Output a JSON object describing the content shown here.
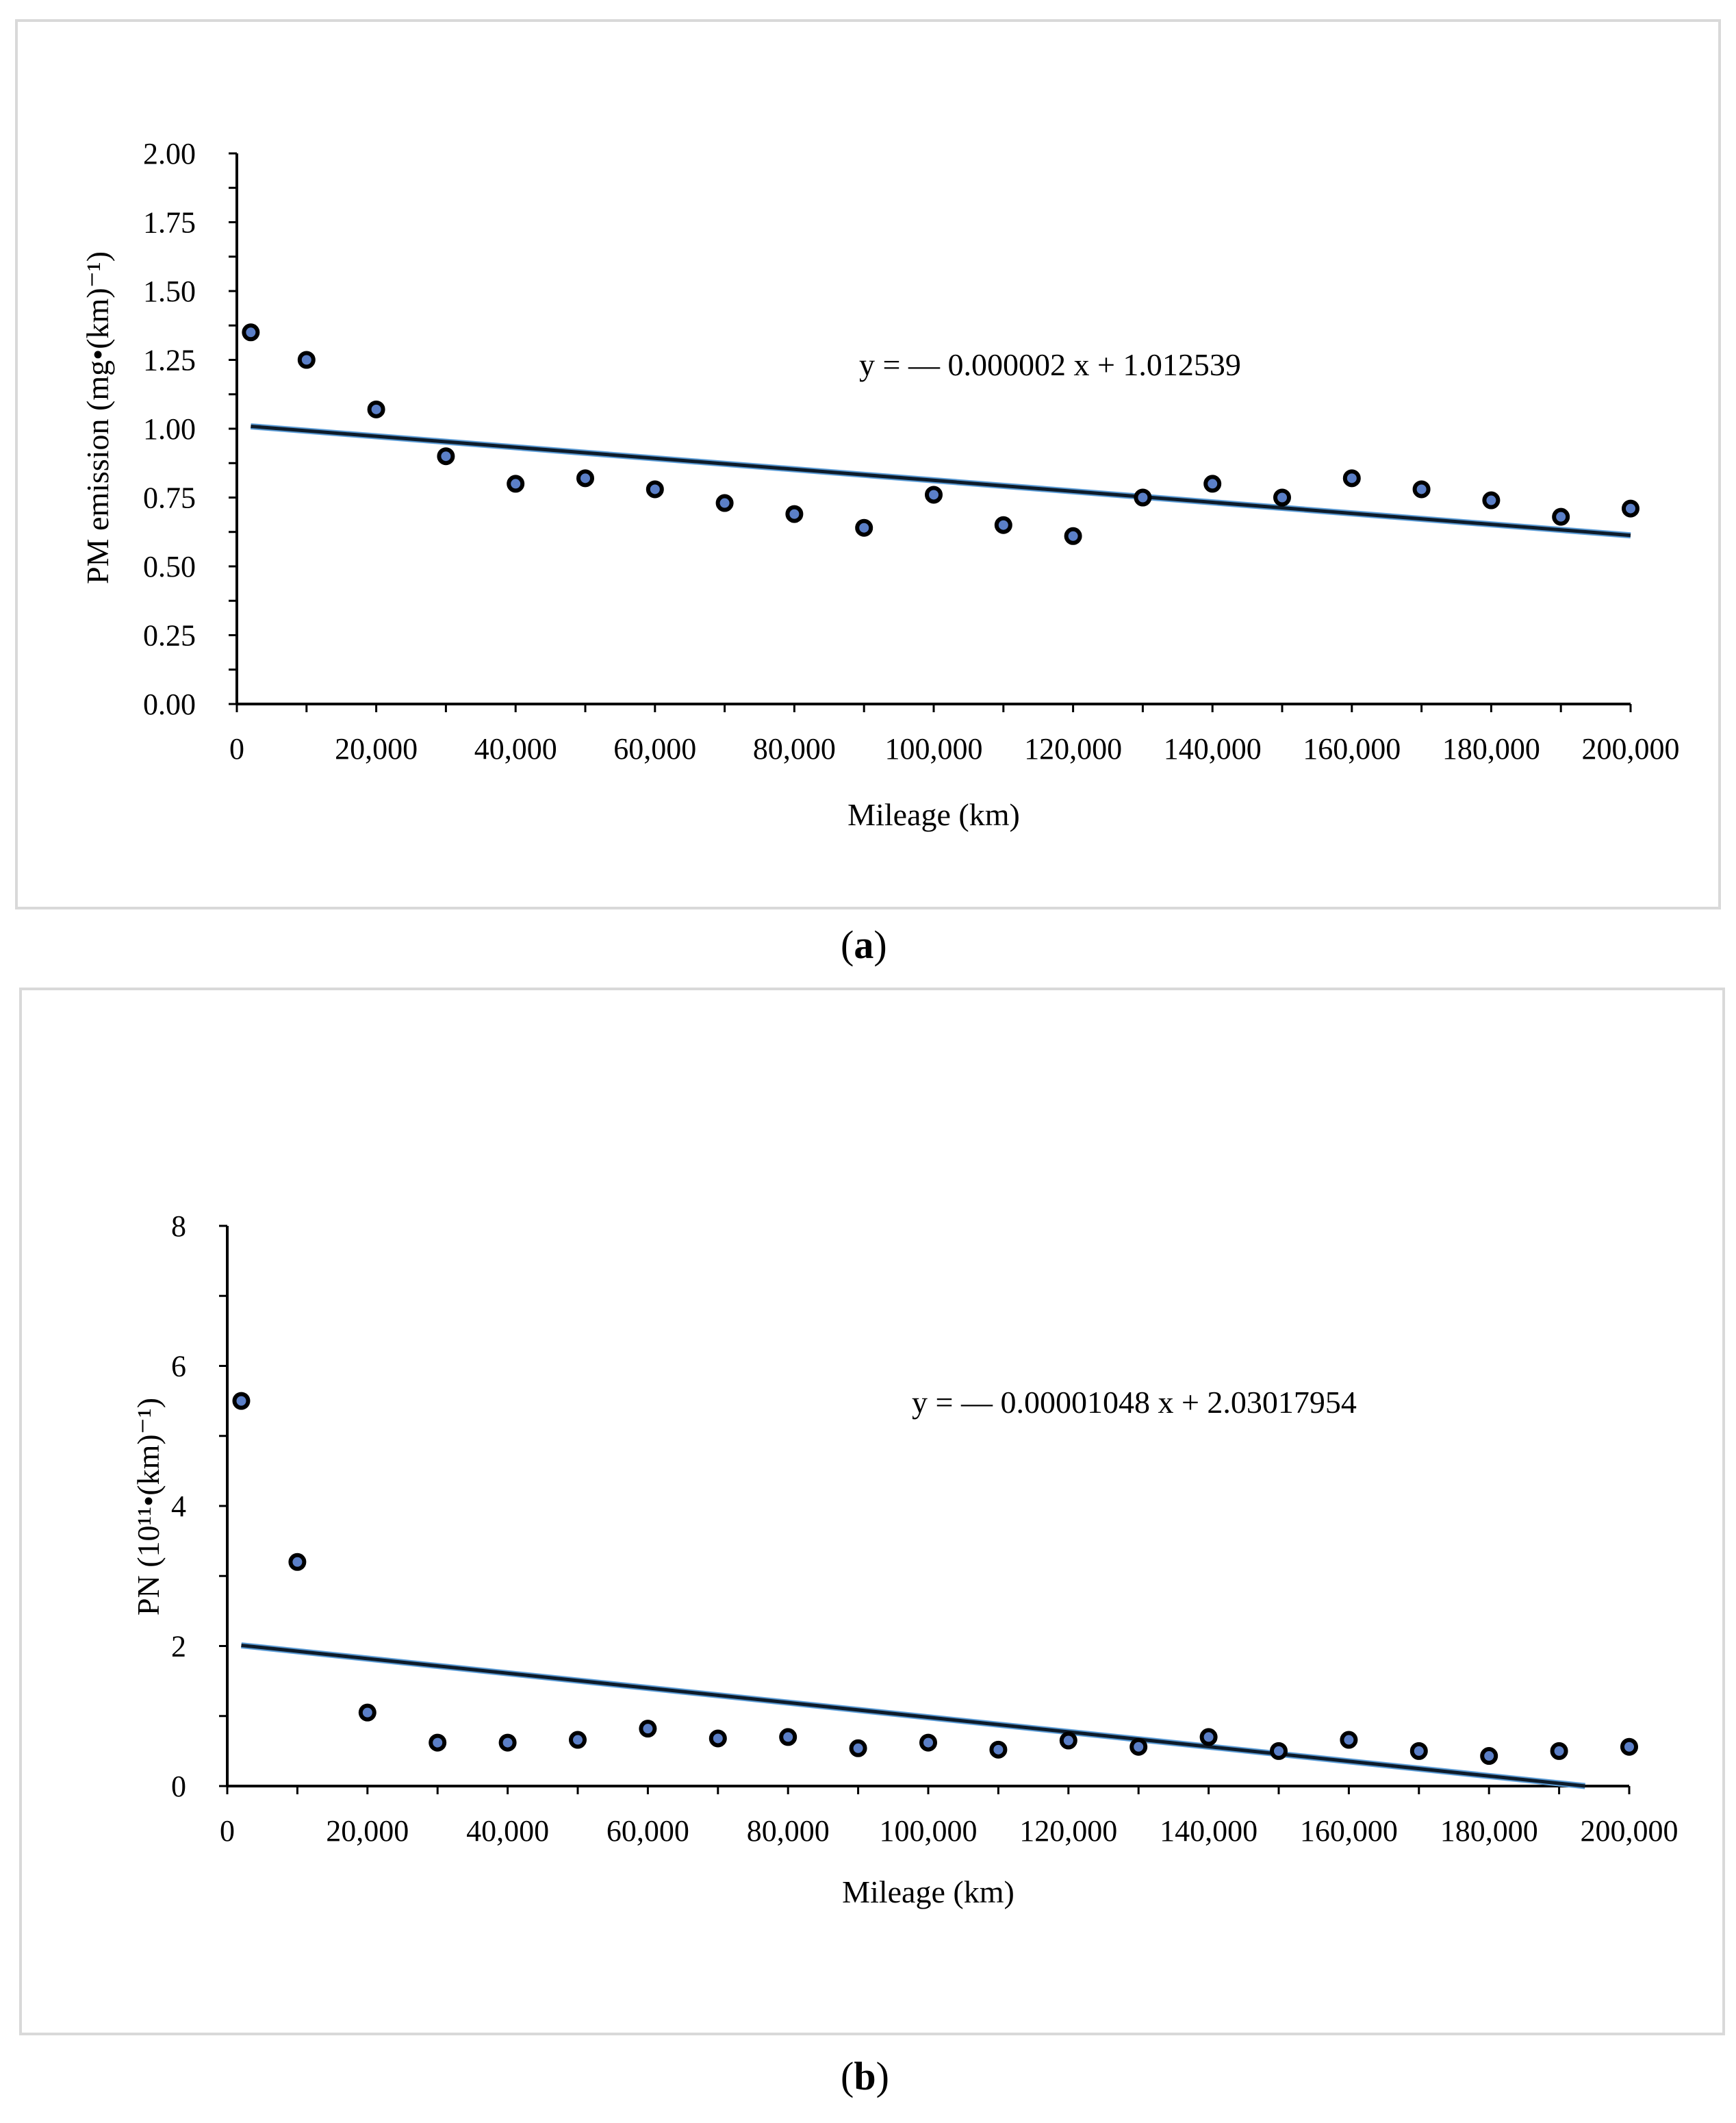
{
  "chart_data": [
    {
      "panel": "a",
      "type": "scatter",
      "xlabel": "Mileage  (km)",
      "ylabel": "PM emission  (mg•(km)⁻¹)",
      "xlim": [
        0,
        200000
      ],
      "ylim": [
        0,
        2.0
      ],
      "x_ticks": [
        0,
        20000,
        40000,
        60000,
        80000,
        100000,
        120000,
        140000,
        160000,
        180000,
        200000
      ],
      "x_tick_labels": [
        "0",
        "20,000",
        "40,000",
        "60,000",
        "80,000",
        "100,000",
        "120,000",
        "140,000",
        "160,000",
        "180,000",
        "200,000"
      ],
      "y_ticks": [
        0,
        0.25,
        0.5,
        0.75,
        1.0,
        1.25,
        1.5,
        1.75,
        2.0
      ],
      "y_tick_labels": [
        "0.00",
        "0.25",
        "0.50",
        "0.75",
        "1.00",
        "1.25",
        "1.50",
        "1.75",
        "2.00"
      ],
      "series": [
        {
          "points": [
            [
              2000,
              1.35
            ],
            [
              10000,
              1.25
            ],
            [
              20000,
              1.07
            ],
            [
              30000,
              0.9
            ],
            [
              40000,
              0.8
            ],
            [
              50000,
              0.82
            ],
            [
              60000,
              0.78
            ],
            [
              70000,
              0.73
            ],
            [
              80000,
              0.69
            ],
            [
              90000,
              0.64
            ],
            [
              100000,
              0.76
            ],
            [
              110000,
              0.65
            ],
            [
              120000,
              0.61
            ],
            [
              130000,
              0.75
            ],
            [
              140000,
              0.8
            ],
            [
              150000,
              0.75
            ],
            [
              160000,
              0.82
            ],
            [
              170000,
              0.78
            ],
            [
              180000,
              0.74
            ],
            [
              190000,
              0.68
            ],
            [
              200000,
              0.71
            ]
          ]
        }
      ],
      "trendline": {
        "slope": -2e-06,
        "intercept": 1.012539,
        "x_range": [
          2000,
          200000
        ]
      },
      "equation": "y = — 0.000002 x + 1.012539",
      "panel_label": "a"
    },
    {
      "panel": "b",
      "type": "scatter",
      "xlabel": "Mileage  (km)",
      "ylabel": "PN (10¹¹•(km)⁻¹)",
      "xlim": [
        0,
        200000
      ],
      "ylim": [
        0,
        8
      ],
      "x_ticks": [
        0,
        20000,
        40000,
        60000,
        80000,
        100000,
        120000,
        140000,
        160000,
        180000,
        200000
      ],
      "x_tick_labels": [
        "0",
        "20,000",
        "40,000",
        "60,000",
        "80,000",
        "100,000",
        "120,000",
        "140,000",
        "160,000",
        "180,000",
        "200,000"
      ],
      "y_ticks": [
        0,
        2,
        4,
        6,
        8
      ],
      "y_tick_labels": [
        "0",
        "2",
        "4",
        "6",
        "8"
      ],
      "series": [
        {
          "points": [
            [
              2000,
              5.5
            ],
            [
              10000,
              3.2
            ],
            [
              20000,
              1.05
            ],
            [
              30000,
              0.62
            ],
            [
              40000,
              0.62
            ],
            [
              50000,
              0.66
            ],
            [
              60000,
              0.82
            ],
            [
              70000,
              0.68
            ],
            [
              80000,
              0.7
            ],
            [
              90000,
              0.54
            ],
            [
              100000,
              0.62
            ],
            [
              110000,
              0.52
            ],
            [
              120000,
              0.65
            ],
            [
              130000,
              0.56
            ],
            [
              140000,
              0.7
            ],
            [
              150000,
              0.5
            ],
            [
              160000,
              0.66
            ],
            [
              170000,
              0.5
            ],
            [
              180000,
              0.43
            ],
            [
              190000,
              0.5
            ],
            [
              200000,
              0.56
            ]
          ]
        }
      ],
      "trendline": {
        "slope": -1.048e-05,
        "intercept": 2.03017954,
        "x_range": [
          2000,
          193700
        ]
      },
      "equation": "y = — 0.00001048 x + 2.03017954",
      "panel_label": "b"
    }
  ]
}
